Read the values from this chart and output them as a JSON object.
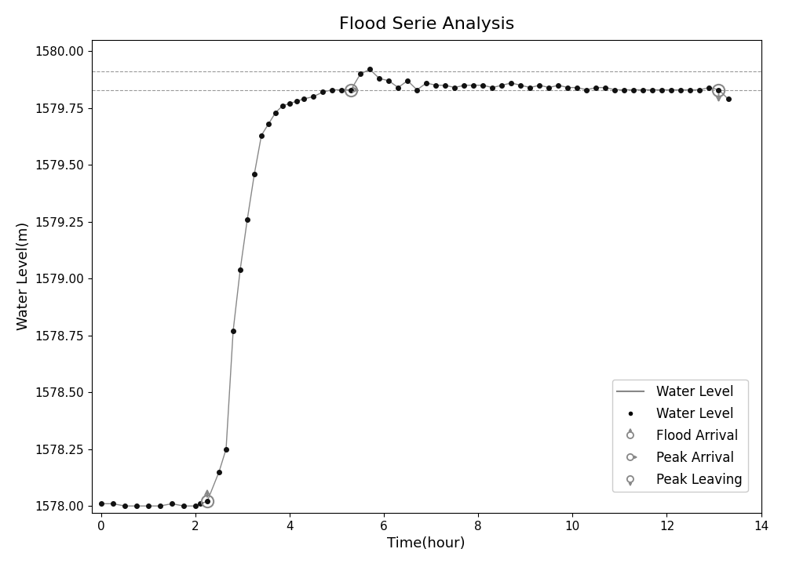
{
  "title": "Flood Serie Analysis",
  "xlabel": "Time(hour)",
  "ylabel": "Water Level(m)",
  "xlim": [
    -0.2,
    14
  ],
  "ylim": [
    1577.97,
    1580.05
  ],
  "yticks": [
    1578.0,
    1578.25,
    1578.5,
    1578.75,
    1579.0,
    1579.25,
    1579.5,
    1579.75,
    1580.0
  ],
  "xticks": [
    0,
    2,
    4,
    6,
    8,
    10,
    12,
    14
  ],
  "dashed_line_low": 1579.83,
  "dashed_line_high": 1579.91,
  "flood_arrival_x": 2.25,
  "flood_arrival_y": 1578.02,
  "peak_arrival_x": 5.3,
  "peak_arrival_y": 1579.83,
  "peak_leaving_x": 13.1,
  "peak_leaving_y": 1579.83,
  "line_color": "#888888",
  "dot_color": "#111111",
  "marker_color": "#888888",
  "background_color": "#ffffff",
  "time_values": [
    0.0,
    0.25,
    0.5,
    0.75,
    1.0,
    1.25,
    1.5,
    1.75,
    2.0,
    2.1,
    2.25,
    2.5,
    2.65,
    2.8,
    2.95,
    3.1,
    3.25,
    3.4,
    3.55,
    3.7,
    3.85,
    4.0,
    4.15,
    4.3,
    4.5,
    4.7,
    4.9,
    5.1,
    5.3,
    5.5,
    5.7,
    5.9,
    6.1,
    6.3,
    6.5,
    6.7,
    6.9,
    7.1,
    7.3,
    7.5,
    7.7,
    7.9,
    8.1,
    8.3,
    8.5,
    8.7,
    8.9,
    9.1,
    9.3,
    9.5,
    9.7,
    9.9,
    10.1,
    10.3,
    10.5,
    10.7,
    10.9,
    11.1,
    11.3,
    11.5,
    11.7,
    11.9,
    12.1,
    12.3,
    12.5,
    12.7,
    12.9,
    13.1,
    13.3
  ],
  "water_values": [
    1578.01,
    1578.01,
    1578.0,
    1578.0,
    1578.0,
    1578.0,
    1578.01,
    1578.0,
    1578.0,
    1578.01,
    1578.02,
    1578.15,
    1578.25,
    1578.77,
    1579.04,
    1579.26,
    1579.46,
    1579.63,
    1579.68,
    1579.73,
    1579.76,
    1579.77,
    1579.78,
    1579.79,
    1579.8,
    1579.82,
    1579.83,
    1579.83,
    1579.83,
    1579.9,
    1579.92,
    1579.88,
    1579.87,
    1579.84,
    1579.87,
    1579.83,
    1579.86,
    1579.85,
    1579.85,
    1579.84,
    1579.85,
    1579.85,
    1579.85,
    1579.84,
    1579.85,
    1579.86,
    1579.85,
    1579.84,
    1579.85,
    1579.84,
    1579.85,
    1579.84,
    1579.84,
    1579.83,
    1579.84,
    1579.84,
    1579.83,
    1579.83,
    1579.83,
    1579.83,
    1579.83,
    1579.83,
    1579.83,
    1579.83,
    1579.83,
    1579.83,
    1579.84,
    1579.83,
    1579.79
  ]
}
